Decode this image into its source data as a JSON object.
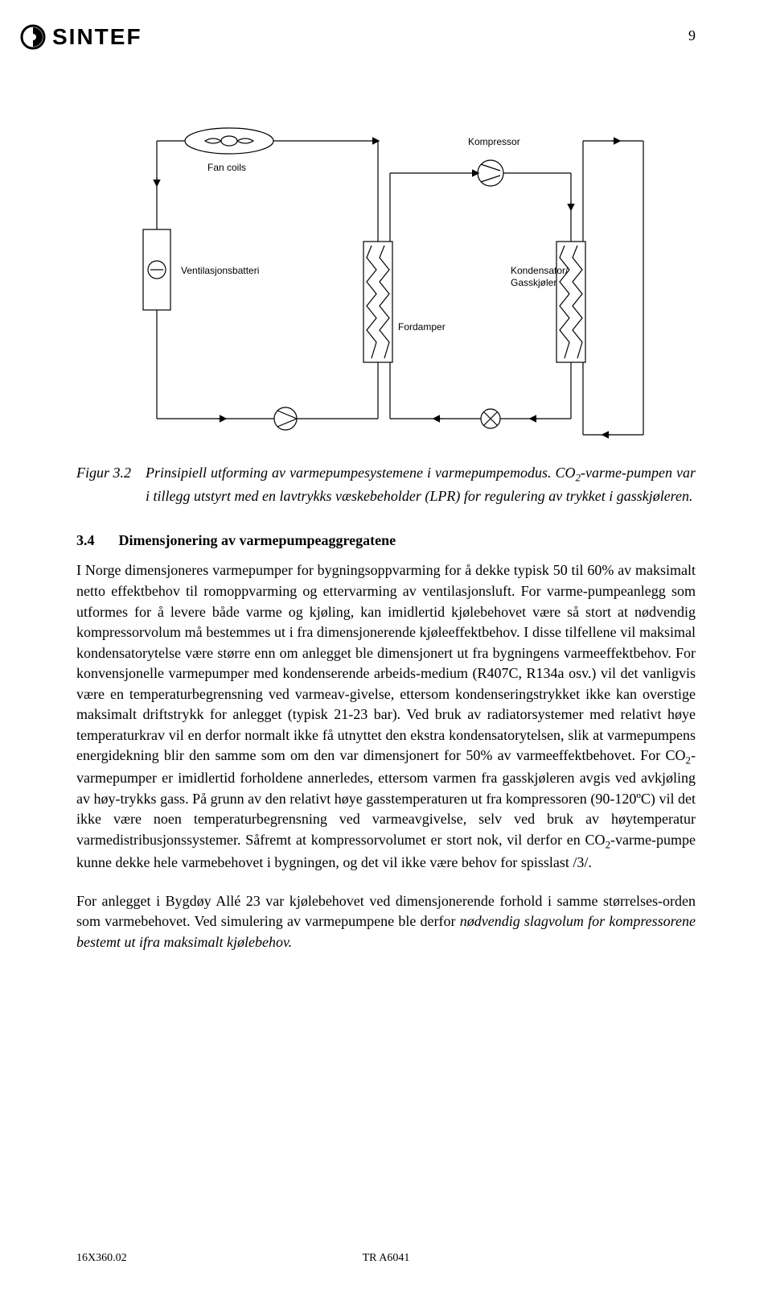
{
  "logo_text": "SINTEF",
  "page_number": "9",
  "diagram": {
    "type": "flowchart",
    "background_color": "#ffffff",
    "line_color": "#000000",
    "line_width": 1.2,
    "font_family": "Arial",
    "label_fontsize": 12,
    "labels": {
      "fan_coils": "Fan coils",
      "vent_batteri": "Ventilasjonsbatteri",
      "kompressor": "Kompressor",
      "fordamper": "Fordamper",
      "kondensator1": "Kondensator/",
      "kondensator2": "Gasskjøler"
    }
  },
  "caption": {
    "label": "Figur 3.2",
    "text_html": "Prinsipiell utforming av varmepumpesystemene i varmepumpemodus. CO<sub>2</sub>-varme-pumpen var i tillegg utstyrt med en lavtrykks væskebeholder (LPR) for regulering av trykket i gasskjøleren."
  },
  "section": {
    "number": "3.4",
    "title": "Dimensjonering av varmepumpeaggregatene"
  },
  "paragraph1_html": "I Norge dimensjoneres varmepumper for bygningsoppvarming for å dekke typisk 50 til 60% av maksimalt netto effektbehov til romoppvarming og ettervarming av ventilasjonsluft. For varme-pumpeanlegg som utformes for å levere både varme og kjøling, kan imidlertid kjølebehovet være så stort at nødvendig kompressorvolum må bestemmes ut i fra dimensjonerende kjøleeffektbehov. I disse tilfellene vil maksimal kondensatorytelse være større enn om anlegget ble dimensjonert ut fra bygningens varmeeffektbehov. For konvensjonelle varmepumper med kondenserende arbeids-medium (R407C, R134a osv.) vil det vanligvis være en temperaturbegrensning ved varmeav-givelse, ettersom kondenseringstrykket ikke kan overstige maksimalt driftstrykk for anlegget (typisk 21-23 bar). Ved bruk av radiatorsystemer med relativt høye temperaturkrav vil en derfor normalt ikke få utnyttet den ekstra kondensatorytelsen, slik at varmepumpens energidekning blir den samme som om den var dimensjonert for 50% av varmeeffektbehovet. For CO<sub>2</sub>-varmepumper er imidlertid forholdene annerledes, ettersom varmen fra gasskjøleren avgis ved avkjøling av høy-trykks gass. På grunn av den relativt høye gasstemperaturen ut fra kompressoren (90-120ºC) vil det ikke være noen temperaturbegrensning ved varmeavgivelse, selv ved bruk av høytemperatur varmedistribusjonssystemer. Såfremt at kompressorvolumet er stort nok, vil derfor en CO<sub>2</sub>-varme-pumpe kunne dekke hele varmebehovet i bygningen, og det vil ikke være behov for spisslast /3/.",
  "paragraph2_html": "For anlegget i Bygdøy Allé 23 var kjølebehovet ved dimensjonerende forhold i samme størrelses-orden som varmebehovet. Ved simulering av varmepumpene ble derfor <i>nødvendig slagvolum for kompressorene bestemt ut ifra maksimalt kjølebehov.</i>",
  "footer_left": "16X360.02",
  "footer_right": "TR A6041"
}
